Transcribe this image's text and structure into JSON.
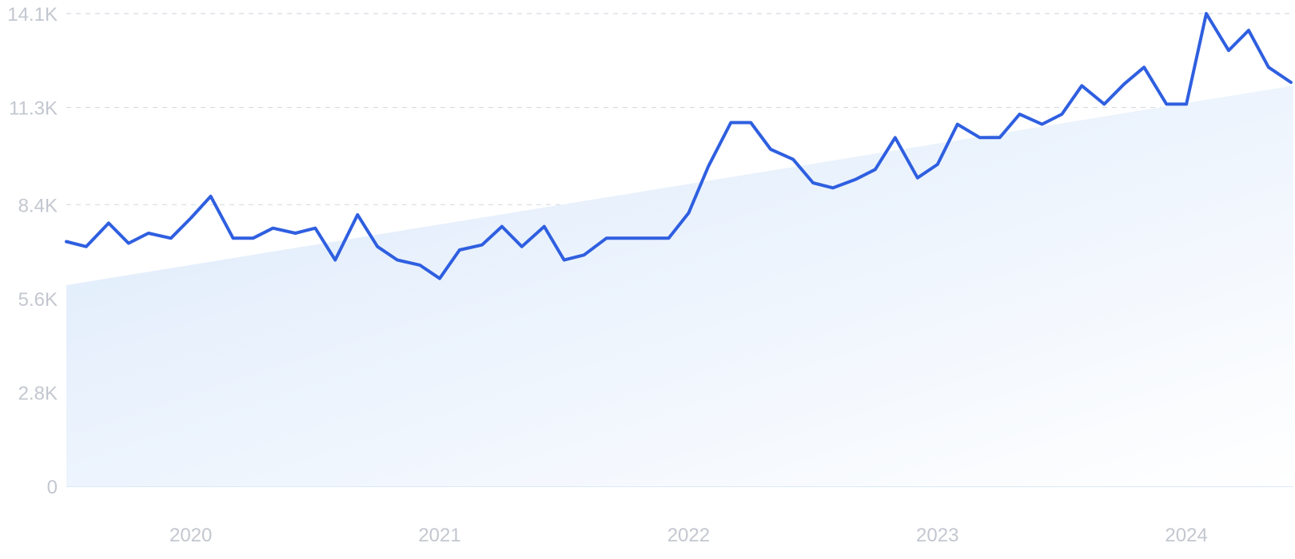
{
  "chart_data": {
    "type": "line",
    "title": "",
    "xlabel": "",
    "ylabel": "",
    "ylim": [
      0,
      14100
    ],
    "y_ticks": [
      {
        "value": 0,
        "label": "0"
      },
      {
        "value": 2800,
        "label": "2.8K"
      },
      {
        "value": 5600,
        "label": "5.6K"
      },
      {
        "value": 8400,
        "label": "8.4K"
      },
      {
        "value": 11300,
        "label": "11.3K"
      },
      {
        "value": 14100,
        "label": "14.1K"
      }
    ],
    "x_ticks": [
      {
        "value": 2020,
        "label": "2020"
      },
      {
        "value": 2021,
        "label": "2021"
      },
      {
        "value": 2022,
        "label": "2022"
      },
      {
        "value": 2023,
        "label": "2023"
      },
      {
        "value": 2024,
        "label": "2024"
      }
    ],
    "grid": "horizontal dashed",
    "series": [
      {
        "values": [
          [
            2019.5,
            7300
          ],
          [
            2019.58,
            7150
          ],
          [
            2019.67,
            7850
          ],
          [
            2019.75,
            7250
          ],
          [
            2019.83,
            7550
          ],
          [
            2019.92,
            7400
          ],
          [
            2020.0,
            8000
          ],
          [
            2020.08,
            8650
          ],
          [
            2020.17,
            7400
          ],
          [
            2020.25,
            7400
          ],
          [
            2020.33,
            7700
          ],
          [
            2020.42,
            7550
          ],
          [
            2020.5,
            7700
          ],
          [
            2020.58,
            6750
          ],
          [
            2020.67,
            8100
          ],
          [
            2020.75,
            7150
          ],
          [
            2020.83,
            6750
          ],
          [
            2020.92,
            6600
          ],
          [
            2021.0,
            6200
          ],
          [
            2021.08,
            7050
          ],
          [
            2021.17,
            7200
          ],
          [
            2021.25,
            7750
          ],
          [
            2021.33,
            7150
          ],
          [
            2021.42,
            7750
          ],
          [
            2021.5,
            6750
          ],
          [
            2021.58,
            6900
          ],
          [
            2021.67,
            7400
          ],
          [
            2021.75,
            7400
          ],
          [
            2021.83,
            7400
          ],
          [
            2021.92,
            7400
          ],
          [
            2022.0,
            8150
          ],
          [
            2022.08,
            9550
          ],
          [
            2022.17,
            10850
          ],
          [
            2022.25,
            10850
          ],
          [
            2022.33,
            10050
          ],
          [
            2022.42,
            9750
          ],
          [
            2022.5,
            9050
          ],
          [
            2022.58,
            8900
          ],
          [
            2022.67,
            9150
          ],
          [
            2022.75,
            9450
          ],
          [
            2022.83,
            10400
          ],
          [
            2022.92,
            9200
          ],
          [
            2023.0,
            9600
          ],
          [
            2023.08,
            10800
          ],
          [
            2023.17,
            10400
          ],
          [
            2023.25,
            10400
          ],
          [
            2023.33,
            11100
          ],
          [
            2023.42,
            10800
          ],
          [
            2023.5,
            11100
          ],
          [
            2023.58,
            11950
          ],
          [
            2023.67,
            11400
          ],
          [
            2023.75,
            12000
          ],
          [
            2023.83,
            12500
          ],
          [
            2023.92,
            11400
          ],
          [
            2024.0,
            11400
          ],
          [
            2024.08,
            14100
          ],
          [
            2024.17,
            13000
          ],
          [
            2024.25,
            13600
          ],
          [
            2024.33,
            12500
          ],
          [
            2024.42,
            12050
          ]
        ]
      }
    ],
    "trend": {
      "start": [
        2019.5,
        6000
      ],
      "end": [
        2024.42,
        11950
      ]
    },
    "colors": {
      "line": "#2f5fe0",
      "area_start": "#dbe9fb",
      "area_end": "#ffffff",
      "grid": "#d5dbe3",
      "baseline": "#cfe2f5",
      "tick_text": "#c3c7cf"
    }
  }
}
